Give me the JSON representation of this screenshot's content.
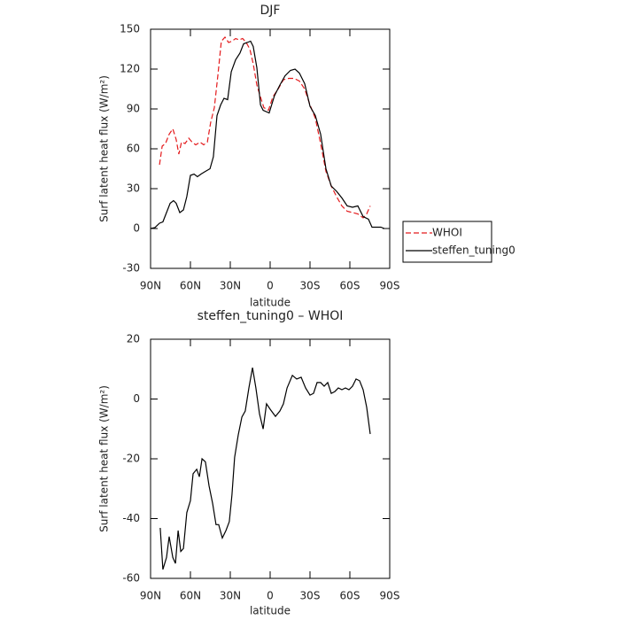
{
  "chart_data": [
    {
      "type": "line",
      "title": "DJF",
      "xlabel": "latitude",
      "ylabel": "Surf latent heat flux (W/m²)",
      "xlim": [
        90,
        -90
      ],
      "xticks": [
        {
          "value": 90,
          "label": "90N"
        },
        {
          "value": 60,
          "label": "60N"
        },
        {
          "value": 30,
          "label": "30N"
        },
        0,
        {
          "value": -30,
          "label": "30S"
        },
        {
          "value": -60,
          "label": "60S"
        },
        {
          "value": -90,
          "label": "90S"
        }
      ],
      "ylim": [
        -30,
        150
      ],
      "yticks": [
        -30,
        0,
        30,
        60,
        90,
        120,
        150
      ],
      "legend": "right",
      "series": [
        {
          "name": "WHOI",
          "color": "#e41a1c",
          "dash": true,
          "x": [
            83.3,
            81.3,
            78.7,
            76,
            73.3,
            70.7,
            68.7,
            66.7,
            64,
            61.3,
            58.7,
            56,
            52.7,
            50,
            47.3,
            44.7,
            42,
            39.3,
            36.7,
            34,
            31.3,
            28.7,
            26,
            23.3,
            20.7,
            18,
            15.3,
            12.7,
            10,
            7.3,
            4.7,
            1.3,
            -2,
            -6,
            -10,
            -14,
            -18,
            -22,
            -26,
            -30,
            -34,
            -38,
            -42,
            -46,
            -50,
            -54,
            -58,
            -62,
            -66,
            -70,
            -72.7,
            -75.3
          ],
          "values": [
            48,
            62,
            64,
            71,
            75,
            67,
            56,
            65,
            64,
            68,
            65,
            63,
            65,
            63,
            65,
            80,
            91,
            116,
            141,
            144,
            140,
            141,
            143,
            142,
            143,
            140,
            135,
            124,
            108,
            99,
            91,
            89,
            99,
            105,
            112,
            113,
            113,
            111,
            105,
            93,
            83,
            64,
            43,
            32,
            24,
            17,
            13,
            12,
            11,
            8,
            11,
            17
          ]
        },
        {
          "name": "steffen_tuning0",
          "color": "#000000",
          "dash": false,
          "x": [
            90,
            86.7,
            83.3,
            80.7,
            78,
            75.3,
            72.7,
            70.7,
            68,
            65.3,
            62.7,
            60,
            57.3,
            54.7,
            52,
            48.7,
            45.3,
            42.7,
            40,
            37.3,
            34.7,
            32,
            29.3,
            26,
            22.7,
            20,
            17.3,
            14.7,
            12.7,
            10,
            7.3,
            5.3,
            0.7,
            -3.3,
            -7.3,
            -11.3,
            -15.3,
            -18.7,
            -22,
            -26,
            -30,
            -34,
            -38,
            -42,
            -46,
            -50,
            -54,
            -58,
            -62,
            -66,
            -70,
            -74,
            -76.7,
            -80,
            -83.3,
            -86
          ],
          "values": [
            0,
            0.7,
            4,
            5,
            12,
            19,
            21,
            19,
            12,
            14,
            24,
            40,
            41,
            39,
            41,
            43,
            45,
            54,
            85,
            93,
            98,
            97,
            118,
            127,
            132,
            139,
            140,
            141,
            137,
            121,
            93,
            89,
            87,
            100,
            108,
            115,
            119,
            120,
            117,
            109,
            92,
            85,
            71,
            45,
            32,
            28,
            23,
            17,
            16,
            17,
            9,
            7,
            1,
            1,
            1,
            0
          ]
        }
      ]
    },
    {
      "type": "line",
      "title": "steffen_tuning0 – WHOI",
      "xlabel": "latitude",
      "ylabel": "Surf latent heat flux (W/m²)",
      "xlim": [
        90,
        -90
      ],
      "xticks": [
        {
          "value": 90,
          "label": "90N"
        },
        {
          "value": 60,
          "label": "60N"
        },
        {
          "value": 30,
          "label": "30N"
        },
        0,
        {
          "value": -30,
          "label": "30S"
        },
        {
          "value": -60,
          "label": "60S"
        },
        {
          "value": -90,
          "label": "90S"
        }
      ],
      "ylim": [
        -60,
        20
      ],
      "yticks": [
        -60,
        -40,
        -20,
        0,
        20
      ],
      "color": "#000000",
      "x": [
        82.7,
        80.7,
        78,
        76,
        73.3,
        71.3,
        69.3,
        67.3,
        65.3,
        62.7,
        60,
        58,
        55.3,
        53.3,
        51.3,
        48.7,
        46,
        43.3,
        40.7,
        38.7,
        36,
        33.3,
        30.7,
        28.7,
        26.7,
        24,
        21.3,
        18.7,
        16,
        13.3,
        10.7,
        8,
        5.3,
        2.7,
        0,
        -4,
        -7.3,
        -10,
        -12.7,
        -16.7,
        -20,
        -23.3,
        -26.7,
        -30,
        -32.7,
        -35.3,
        -38,
        -40.7,
        -43.3,
        -46,
        -48.7,
        -51.3,
        -54,
        -56.7,
        -59.3,
        -62,
        -64.7,
        -67.3,
        -70,
        -72.7,
        -75.3
      ],
      "values": [
        -43.1,
        -57,
        -53,
        -46,
        -53,
        -55,
        -44,
        -51,
        -50,
        -38,
        -34,
        -25,
        -23.5,
        -26,
        -20,
        -21,
        -29,
        -35,
        -42,
        -42,
        -46.5,
        -44,
        -41,
        -32,
        -19.5,
        -12,
        -6,
        -4,
        3.7,
        10.5,
        3.7,
        -5,
        -10,
        -1.6,
        -3.4,
        -5.8,
        -4,
        -1.6,
        3.7,
        7.9,
        6.7,
        7.3,
        3.7,
        1.3,
        1.9,
        5.5,
        5.5,
        4.3,
        5.5,
        1.9,
        2.5,
        3.7,
        3.1,
        3.7,
        3.1,
        4.3,
        6.7,
        6.1,
        3.1,
        -2.8,
        -11.7
      ]
    }
  ]
}
